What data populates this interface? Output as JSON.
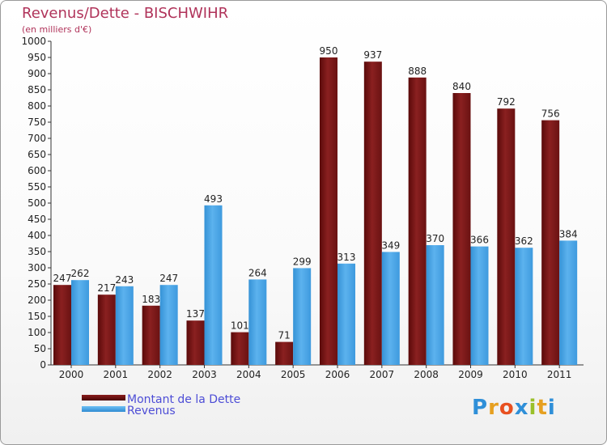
{
  "header": {
    "title": "Revenus/Dette - BISCHWIHR",
    "subtitle": "(en milliers d'€)"
  },
  "chart_data": {
    "type": "bar",
    "title": "Revenus/Dette - BISCHWIHR",
    "subtitle": "(en milliers d'€)",
    "xlabel": "",
    "ylabel": "",
    "ylim": [
      0,
      1000
    ],
    "ytick_step": 50,
    "grid": false,
    "legend_position": "bottom-left",
    "categories": [
      "2000",
      "2001",
      "2002",
      "2003",
      "2004",
      "2005",
      "2006",
      "2007",
      "2008",
      "2009",
      "2010",
      "2011"
    ],
    "series": [
      {
        "name": "Montant de la Dette",
        "color": "#7a1616",
        "values": [
          247,
          217,
          183,
          137,
          101,
          71,
          950,
          937,
          888,
          840,
          792,
          756
        ]
      },
      {
        "name": "Revenus",
        "color": "#4da6e6",
        "values": [
          262,
          243,
          247,
          493,
          264,
          299,
          313,
          349,
          370,
          366,
          362,
          384
        ]
      }
    ]
  },
  "legend": {
    "items": [
      {
        "label": "Montant de la Dette",
        "color": "#6b0f0f"
      },
      {
        "label": "Revenus",
        "color": "#3d9ce0"
      }
    ]
  },
  "logo": {
    "letters": [
      "P",
      "r",
      "o",
      "x",
      "i",
      "t",
      "i"
    ],
    "colors": [
      "#2f8fd8",
      "#e6a020",
      "#e85020",
      "#2f8fd8",
      "#9ac02a",
      "#e6a020",
      "#2f8fd8"
    ]
  }
}
